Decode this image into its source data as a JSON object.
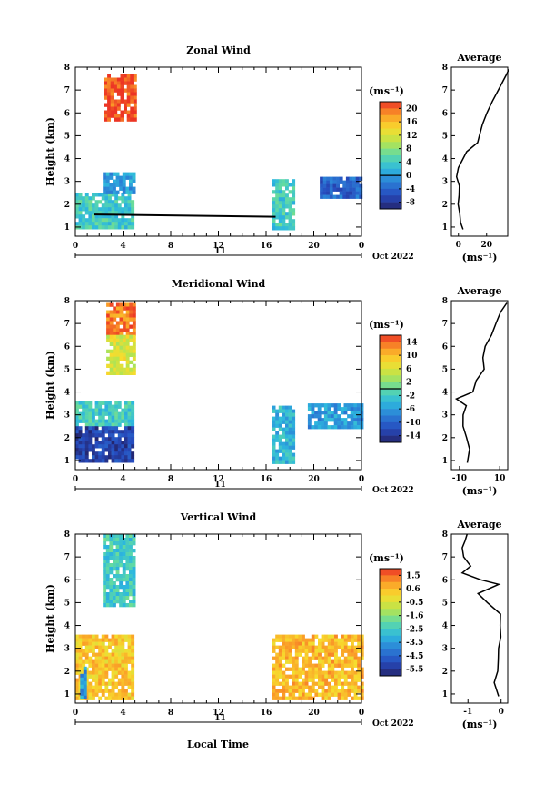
{
  "figure": {
    "xlabel": "Local Time",
    "date_label": "Oct 2022",
    "day_label": "11"
  },
  "chart_data": [
    {
      "type": "heatmap",
      "title": "Zonal Wind",
      "ylabel": "Height (km)",
      "xlim": [
        0,
        24
      ],
      "ylim": [
        0.6,
        8
      ],
      "xticks": [
        "0",
        "4",
        "8",
        "12",
        "16",
        "20",
        "0"
      ],
      "yticks": [
        "1",
        "2",
        "3",
        "4",
        "5",
        "6",
        "7",
        "8"
      ],
      "colorbar": {
        "label": "(ms⁻¹)",
        "ticks": [
          "20",
          "16",
          "12",
          "8",
          "4",
          "0",
          "-4",
          "-8"
        ],
        "range": [
          -10,
          22
        ]
      },
      "data_regions": [
        {
          "x": [
            2.4,
            4.9
          ],
          "y": [
            5.7,
            7.7
          ],
          "value": 21
        },
        {
          "x": [
            0,
            4.9
          ],
          "y": [
            1.0,
            2.5
          ],
          "value": 4
        },
        {
          "x": [
            2.3,
            4.9
          ],
          "y": [
            2.5,
            3.4
          ],
          "value": 0
        },
        {
          "x": [
            16.5,
            18.3
          ],
          "y": [
            1.0,
            3.1
          ],
          "value": 4
        },
        {
          "x": [
            20.5,
            24
          ],
          "y": [
            2.3,
            3.2
          ],
          "value": -4
        }
      ],
      "zero_contour_line": {
        "x": [
          1.6,
          16.8
        ],
        "y": [
          1.55,
          1.45
        ]
      },
      "average_profile": {
        "title": "Average",
        "xlabel": "(ms⁻¹)",
        "xticks": [
          "0",
          "20"
        ],
        "xlim": [
          -5,
          35
        ],
        "height": [
          0.9,
          1.2,
          1.6,
          2.0,
          2.4,
          2.8,
          3.2,
          3.6,
          4.3,
          4.7,
          5.0,
          5.5,
          6.0,
          6.5,
          7.0,
          7.4,
          7.7,
          7.9
        ],
        "value": [
          4,
          2,
          1,
          0,
          1,
          0,
          -1,
          0,
          6,
          13,
          15,
          17,
          20,
          24,
          28,
          31,
          34,
          35
        ]
      }
    },
    {
      "type": "heatmap",
      "title": "Meridional Wind",
      "ylabel": "Height (km)",
      "xlim": [
        0,
        24
      ],
      "ylim": [
        0.6,
        8
      ],
      "xticks": [
        "0",
        "4",
        "8",
        "12",
        "16",
        "20",
        "0"
      ],
      "yticks": [
        "1",
        "2",
        "3",
        "4",
        "5",
        "6",
        "7",
        "8"
      ],
      "colorbar": {
        "label": "(ms⁻¹)",
        "ticks": [
          "14",
          "10",
          "6",
          "2",
          "-2",
          "-6",
          "-10",
          "-14"
        ],
        "range": [
          -16,
          16
        ]
      },
      "data_regions": [
        {
          "x": [
            2.6,
            4.9
          ],
          "y": [
            6.5,
            7.9
          ],
          "value": 13
        },
        {
          "x": [
            2.6,
            4.9
          ],
          "y": [
            4.9,
            6.5
          ],
          "value": 6
        },
        {
          "x": [
            0,
            4.9
          ],
          "y": [
            2.5,
            3.6
          ],
          "value": -2
        },
        {
          "x": [
            0,
            4.9
          ],
          "y": [
            1.0,
            2.5
          ],
          "value": -13
        },
        {
          "x": [
            16.5,
            18.3
          ],
          "y": [
            1.0,
            3.4
          ],
          "value": -4
        },
        {
          "x": [
            19.5,
            24
          ],
          "y": [
            2.5,
            3.5
          ],
          "value": -6
        }
      ],
      "average_profile": {
        "title": "Average",
        "xlabel": "(ms⁻¹)",
        "xticks": [
          "-10",
          "10"
        ],
        "xlim": [
          -14,
          14
        ],
        "height": [
          0.9,
          1.5,
          2.0,
          2.5,
          3.0,
          3.4,
          3.7,
          4.0,
          4.5,
          5.0,
          5.5,
          6.0,
          6.5,
          7.0,
          7.5,
          7.9
        ],
        "value": [
          -6,
          -5,
          -6,
          -8,
          -8,
          -7,
          -12,
          -3,
          -2,
          2,
          2,
          3,
          6,
          8,
          11,
          13
        ]
      }
    },
    {
      "type": "heatmap",
      "title": "Vertical Wind",
      "ylabel": "Height (km)",
      "xlim": [
        0,
        24
      ],
      "ylim": [
        0.6,
        8
      ],
      "xticks": [
        "0",
        "4",
        "8",
        "12",
        "16",
        "20",
        "0"
      ],
      "yticks": [
        "1",
        "2",
        "3",
        "4",
        "5",
        "6",
        "7",
        "8"
      ],
      "colorbar": {
        "label": "(ms⁻¹)",
        "ticks": [
          "1.5",
          "0.6",
          "-0.5",
          "-1.6",
          "-2.5",
          "-3.5",
          "-4.5",
          "-5.5"
        ],
        "range": [
          -6,
          2
        ]
      },
      "data_regions": [
        {
          "x": [
            2.3,
            4.9
          ],
          "y": [
            4.9,
            8.0
          ],
          "value": -2.5
        },
        {
          "x": [
            0,
            4.9
          ],
          "y": [
            0.8,
            3.6
          ],
          "value": 0.3
        },
        {
          "x": [
            0.4,
            0.9
          ],
          "y": [
            0.8,
            2.2
          ],
          "value": -3.5
        },
        {
          "x": [
            16.5,
            24
          ],
          "y": [
            0.8,
            3.6
          ],
          "value": 0.5
        }
      ],
      "average_profile": {
        "title": "Average",
        "xlabel": "(ms⁻¹)",
        "xticks": [
          "-1",
          "0"
        ],
        "xlim": [
          -1.5,
          0.2
        ],
        "height": [
          0.9,
          1.5,
          2.0,
          2.5,
          3.0,
          3.5,
          4.0,
          4.5,
          5.0,
          5.4,
          5.8,
          6.0,
          6.3,
          6.6,
          7.0,
          7.4,
          7.7,
          8.0
        ],
        "value": [
          -0.05,
          -0.2,
          -0.1,
          -0.1,
          -0.05,
          0,
          -0.05,
          -0.05,
          -0.4,
          -0.7,
          -0.1,
          -0.6,
          -1.2,
          -0.9,
          -1.1,
          -1.2,
          -1.1,
          -1.0
        ]
      }
    }
  ]
}
